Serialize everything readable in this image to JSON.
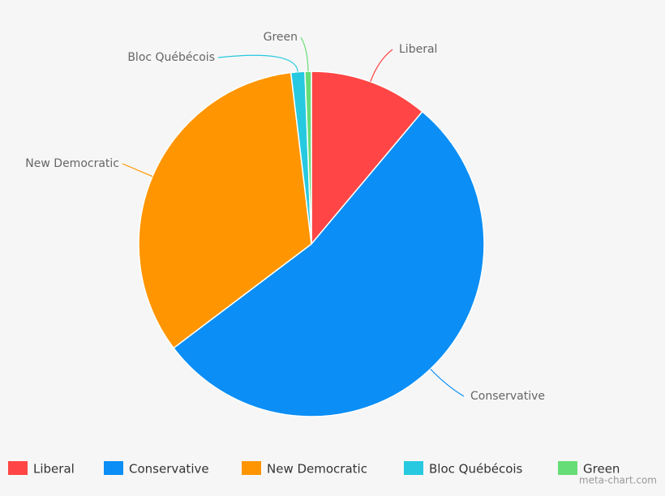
{
  "chart_data": {
    "type": "pie",
    "categories": [
      "Liberal",
      "Conservative",
      "New Democratic",
      "Bloc Québécois",
      "Green"
    ],
    "values": [
      11.1,
      53.6,
      33.4,
      1.3,
      0.6
    ],
    "colors": [
      "#ff4545",
      "#0b8ef5",
      "#ff9500",
      "#26c9e0",
      "#66dd77"
    ],
    "legend": "bottom",
    "watermark": "meta-chart.com"
  }
}
